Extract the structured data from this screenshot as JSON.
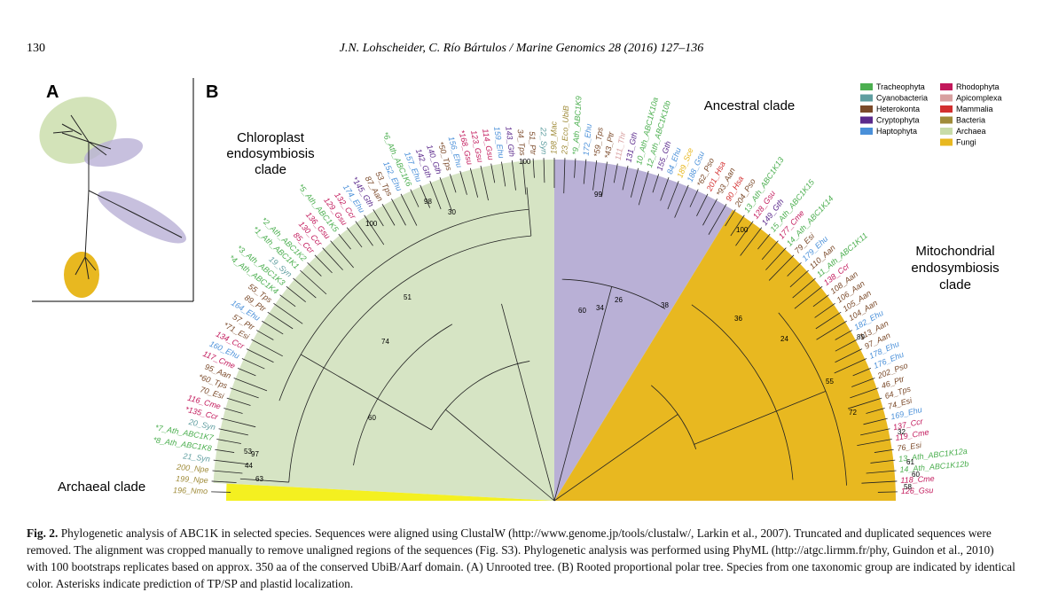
{
  "header": {
    "page_number": "130",
    "journal": "J.N. Lohscheider, C. Río Bártulos / Marine Genomics 28 (2016) 127–136"
  },
  "figure": {
    "panel_a": "A",
    "panel_b": "B",
    "clades": {
      "chloroplast": [
        "Chloroplast",
        "endosymbiosis",
        "clade"
      ],
      "ancestral": "Ancestral clade",
      "mitochondrial": [
        "Mitochondrial",
        "endosymbiosis",
        "clade"
      ],
      "archaeal": "Archaeal clade"
    },
    "legend": [
      {
        "name": "Tracheophyta",
        "color": "#4caf50"
      },
      {
        "name": "Cyanobacteria",
        "color": "#5f9ea0"
      },
      {
        "name": "Heterokonta",
        "color": "#7b4a2a"
      },
      {
        "name": "Cryptophyta",
        "color": "#5b2a8c"
      },
      {
        "name": "Haptophyta",
        "color": "#4a90d9"
      },
      {
        "name": "Rhodophyta",
        "color": "#c2185b"
      },
      {
        "name": "Apicomplexa",
        "color": "#d8a0a0"
      },
      {
        "name": "Mammalia",
        "color": "#d32f2f"
      },
      {
        "name": "Bacteria",
        "color": "#a08c3a"
      },
      {
        "name": "Archaea",
        "color": "#c8dca8"
      },
      {
        "name": "Fungi",
        "color": "#e8b820"
      }
    ],
    "leaves": [
      {
        "label": "196_Nmo",
        "color": "#a08c3a"
      },
      {
        "label": "199_Npe",
        "color": "#a08c3a"
      },
      {
        "label": "200_Npe",
        "color": "#a08c3a"
      },
      {
        "label": "21_Syn",
        "color": "#5f9ea0"
      },
      {
        "label": "*8_Ath_ABC1K8",
        "color": "#4caf50"
      },
      {
        "label": "*7_Ath_ABC1K7",
        "color": "#4caf50"
      },
      {
        "label": "20_Syn",
        "color": "#5f9ea0"
      },
      {
        "label": "*135_Ccr",
        "color": "#c2185b"
      },
      {
        "label": "116_Cme",
        "color": "#c2185b"
      },
      {
        "label": "70_Esi",
        "color": "#7b4a2a"
      },
      {
        "label": "*60_Tps",
        "color": "#7b4a2a"
      },
      {
        "label": "95_Aan",
        "color": "#7b4a2a"
      },
      {
        "label": "117_Cme",
        "color": "#c2185b"
      },
      {
        "label": "160_Ehu",
        "color": "#4a90d9"
      },
      {
        "label": "134_Ccr",
        "color": "#c2185b"
      },
      {
        "label": "*71_Esi",
        "color": "#7b4a2a"
      },
      {
        "label": "57_Ptr",
        "color": "#7b4a2a"
      },
      {
        "label": "164_Ehu",
        "color": "#4a90d9"
      },
      {
        "label": "89_Ptr",
        "color": "#7b4a2a"
      },
      {
        "label": "55_Tps",
        "color": "#7b4a2a"
      },
      {
        "label": "*4_Ath_ABC1K4",
        "color": "#4caf50"
      },
      {
        "label": "*3_Ath_ABC1K3",
        "color": "#4caf50"
      },
      {
        "label": "19_Syn",
        "color": "#5f9ea0"
      },
      {
        "label": "*1_Ath_ABC1K1",
        "color": "#4caf50"
      },
      {
        "label": "*2_Ath_ABC1K2",
        "color": "#4caf50"
      },
      {
        "label": "85_Ccr",
        "color": "#c2185b"
      },
      {
        "label": "130_Ccr",
        "color": "#c2185b"
      },
      {
        "label": "136_Gsu",
        "color": "#c2185b"
      },
      {
        "label": "*5_Ath_ABC1K5",
        "color": "#4caf50"
      },
      {
        "label": "129_Gsu",
        "color": "#c2185b"
      },
      {
        "label": "132_Ccr",
        "color": "#c2185b"
      },
      {
        "label": "174_Ehu",
        "color": "#4a90d9"
      },
      {
        "label": "*145_Gth",
        "color": "#5b2a8c"
      },
      {
        "label": "87_Aan",
        "color": "#7b4a2a"
      },
      {
        "label": "53_Tps",
        "color": "#7b4a2a"
      },
      {
        "label": "152_Ehu",
        "color": "#4a90d9"
      },
      {
        "label": "*6_Ath_ABC1K6",
        "color": "#4caf50"
      },
      {
        "label": "157_Ehu",
        "color": "#4a90d9"
      },
      {
        "label": "142_Gth",
        "color": "#5b2a8c"
      },
      {
        "label": "140_Gth",
        "color": "#5b2a8c"
      },
      {
        "label": "*50_Tps",
        "color": "#7b4a2a"
      },
      {
        "label": "156_Ehu",
        "color": "#4a90d9"
      },
      {
        "label": "*168_Gsu",
        "color": "#c2185b"
      },
      {
        "label": "123_Gsu",
        "color": "#c2185b"
      },
      {
        "label": "114_Gsu",
        "color": "#c2185b"
      },
      {
        "label": "159_Ehu",
        "color": "#4a90d9"
      },
      {
        "label": "143_Gth",
        "color": "#5b2a8c"
      },
      {
        "label": "34_Tps",
        "color": "#7b4a2a"
      },
      {
        "label": "51_Ptr",
        "color": "#7b4a2a"
      },
      {
        "label": "22_Syn",
        "color": "#5f9ea0"
      },
      {
        "label": "198_Mac",
        "color": "#a08c3a"
      },
      {
        "label": "23_Eco_UbiB",
        "color": "#a08c3a"
      },
      {
        "label": "*9_Ath_ABC1K9",
        "color": "#4caf50"
      },
      {
        "label": "172_Ehu",
        "color": "#4a90d9"
      },
      {
        "label": "*59_Tps",
        "color": "#7b4a2a"
      },
      {
        "label": "*43_Ptr",
        "color": "#7b4a2a"
      },
      {
        "label": "111_Thr",
        "color": "#d8a0a0"
      },
      {
        "label": "131_Gth",
        "color": "#5b2a8c"
      },
      {
        "label": "10_Ath_ABC1K10a",
        "color": "#4caf50"
      },
      {
        "label": "12_Ath_ABC1K10b",
        "color": "#4caf50"
      },
      {
        "label": "155_Gth",
        "color": "#5b2a8c"
      },
      {
        "label": "84_Ehu",
        "color": "#4a90d9"
      },
      {
        "label": "189_Sce",
        "color": "#e8b820"
      },
      {
        "label": "188_Gsu",
        "color": "#4a90d9"
      },
      {
        "label": "*62_Pso",
        "color": "#7b4a2a"
      },
      {
        "label": "201_Hsa",
        "color": "#d32f2f"
      },
      {
        "label": "*93_Aan",
        "color": "#7b4a2a"
      },
      {
        "label": "90_Hsa",
        "color": "#d32f2f"
      },
      {
        "label": "204_Pso",
        "color": "#7b4a2a"
      },
      {
        "label": "13_Ath_ABC1K13",
        "color": "#4caf50"
      },
      {
        "label": "128_Gsu",
        "color": "#c2185b"
      },
      {
        "label": "149_Gth",
        "color": "#5b2a8c"
      },
      {
        "label": "15_Ath_ABC1K15",
        "color": "#4caf50"
      },
      {
        "label": "177_Cme",
        "color": "#c2185b"
      },
      {
        "label": "14_Ath_ABC1K14",
        "color": "#4caf50"
      },
      {
        "label": "79_Esi",
        "color": "#7b4a2a"
      },
      {
        "label": "179_Ehu",
        "color": "#4a90d9"
      },
      {
        "label": "110_Aan",
        "color": "#7b4a2a"
      },
      {
        "label": "11_Ath_ABC1K11",
        "color": "#4caf50"
      },
      {
        "label": "138_Ccr",
        "color": "#c2185b"
      },
      {
        "label": "108_Aan",
        "color": "#7b4a2a"
      },
      {
        "label": "106_Aan",
        "color": "#7b4a2a"
      },
      {
        "label": "105_Aan",
        "color": "#7b4a2a"
      },
      {
        "label": "104_Aan",
        "color": "#7b4a2a"
      },
      {
        "label": "182_Ehu",
        "color": "#4a90d9"
      },
      {
        "label": "113_Aan",
        "color": "#7b4a2a"
      },
      {
        "label": "97_Aan",
        "color": "#7b4a2a"
      },
      {
        "label": "178_Ehu",
        "color": "#4a90d9"
      },
      {
        "label": "176_Ehu",
        "color": "#4a90d9"
      },
      {
        "label": "202_Pso",
        "color": "#7b4a2a"
      },
      {
        "label": "46_Ptr",
        "color": "#7b4a2a"
      },
      {
        "label": "64_Tps",
        "color": "#7b4a2a"
      },
      {
        "label": "74_Esi",
        "color": "#7b4a2a"
      },
      {
        "label": "169_Ehu",
        "color": "#4a90d9"
      },
      {
        "label": "137_Ccr",
        "color": "#c2185b"
      },
      {
        "label": "119_Cme",
        "color": "#c2185b"
      },
      {
        "label": "76_Esi",
        "color": "#7b4a2a"
      },
      {
        "label": "13_Ath_ABC1K12a",
        "color": "#4caf50"
      },
      {
        "label": "14_Ath_ABC1K12b",
        "color": "#4caf50"
      },
      {
        "label": "118_Cme",
        "color": "#c2185b"
      },
      {
        "label": "126_Gsu",
        "color": "#c2185b"
      }
    ],
    "bootstraps": [
      "51",
      "74",
      "60",
      "30",
      "98",
      "100",
      "97",
      "53",
      "44",
      "63",
      "36",
      "24",
      "38",
      "26",
      "34",
      "60",
      "100",
      "99",
      "55",
      "72",
      "32",
      "61",
      "60",
      "58",
      "100",
      "89"
    ]
  },
  "caption": {
    "label": "Fig. 2.",
    "text": "Phylogenetic analysis of ABC1K in selected species. Sequences were aligned using ClustalW (http://www.genome.jp/tools/clustalw/, Larkin et al., 2007). Truncated and duplicated sequences were removed. The alignment was cropped manually to remove unaligned regions of the sequences (Fig. S3). Phylogenetic analysis was performed using PhyML (http://atgc.lirmm.fr/phy, Guindon et al., 2010) with 100 bootstraps replicates based on approx. 350 aa of the conserved UbiB/Aarf domain. (A) Unrooted tree. (B) Rooted proportional polar tree. Species from one taxonomic group are indicated by identical color. Asterisks indicate prediction of TP/SP and plastid localization."
  }
}
